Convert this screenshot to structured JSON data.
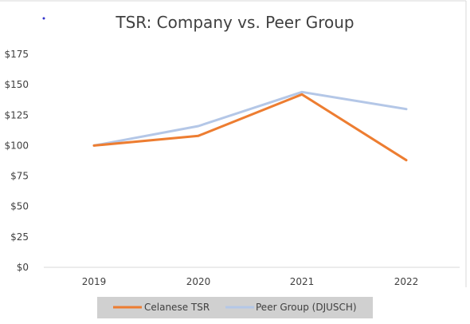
{
  "chart_data": {
    "type": "line",
    "title": "TSR: Company vs. Peer Group",
    "categories": [
      "2019",
      "2020",
      "2021",
      "2022"
    ],
    "y_ticks": [
      "$0",
      "$25",
      "$50",
      "$75",
      "$100",
      "$125",
      "$150",
      "$175"
    ],
    "ylim": [
      0,
      175
    ],
    "grid": false,
    "legend_position": "bottom",
    "series": [
      {
        "name": "Celanese TSR",
        "color": "#ED7D31",
        "values": [
          100,
          108,
          142,
          88
        ]
      },
      {
        "name": "Peer Group (DJUSCH)",
        "color": "#B4C7E7",
        "values": [
          100,
          116,
          144,
          130
        ]
      }
    ]
  }
}
